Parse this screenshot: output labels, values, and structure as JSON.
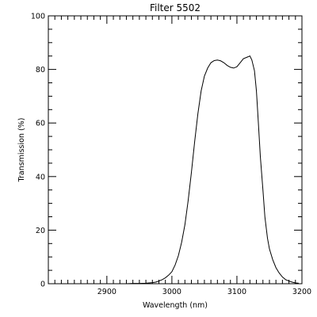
{
  "chart_data": {
    "type": "line",
    "title": "Filter 5502",
    "xlabel": "Wavelength (nm)",
    "ylabel": "Transmission (%)",
    "xlim": [
      2810,
      3200
    ],
    "ylim": [
      0,
      100
    ],
    "xticks": [
      2900,
      3000,
      3100,
      3200
    ],
    "yticks": [
      0,
      20,
      40,
      60,
      80,
      100
    ],
    "x_minor_step": 10,
    "y_minor_step": 5,
    "grid": false,
    "colors": {
      "line": "#000000",
      "axes": "#000000",
      "background": "#ffffff"
    },
    "series": [
      {
        "x": [
          2930,
          2940,
          2950,
          2960,
          2970,
          2975,
          2980,
          2985,
          2990,
          2995,
          3000,
          3005,
          3010,
          3015,
          3020,
          3025,
          3030,
          3035,
          3040,
          3045,
          3050,
          3055,
          3060,
          3065,
          3070,
          3075,
          3080,
          3085,
          3090,
          3095,
          3100,
          3105,
          3110,
          3115,
          3120,
          3123,
          3127,
          3130,
          3133,
          3136,
          3140,
          3143,
          3147,
          3150,
          3155,
          3160,
          3165,
          3170,
          3175,
          3180,
          3185,
          3190,
          3195
        ],
        "y": [
          0.0,
          0.1,
          0.1,
          0.2,
          0.4,
          0.6,
          1.0,
          1.5,
          2.2,
          3.2,
          4.5,
          7.0,
          10.5,
          15.5,
          22.0,
          31.0,
          41.5,
          53.0,
          63.5,
          72.0,
          77.5,
          80.5,
          82.5,
          83.3,
          83.5,
          83.2,
          82.5,
          81.5,
          80.8,
          80.5,
          81.0,
          82.5,
          84.0,
          84.5,
          85.0,
          83.5,
          79.5,
          72.0,
          60.0,
          47.5,
          35.0,
          25.0,
          17.0,
          13.0,
          9.0,
          6.0,
          4.0,
          2.5,
          1.5,
          1.0,
          0.6,
          0.3,
          0.2
        ]
      }
    ]
  }
}
